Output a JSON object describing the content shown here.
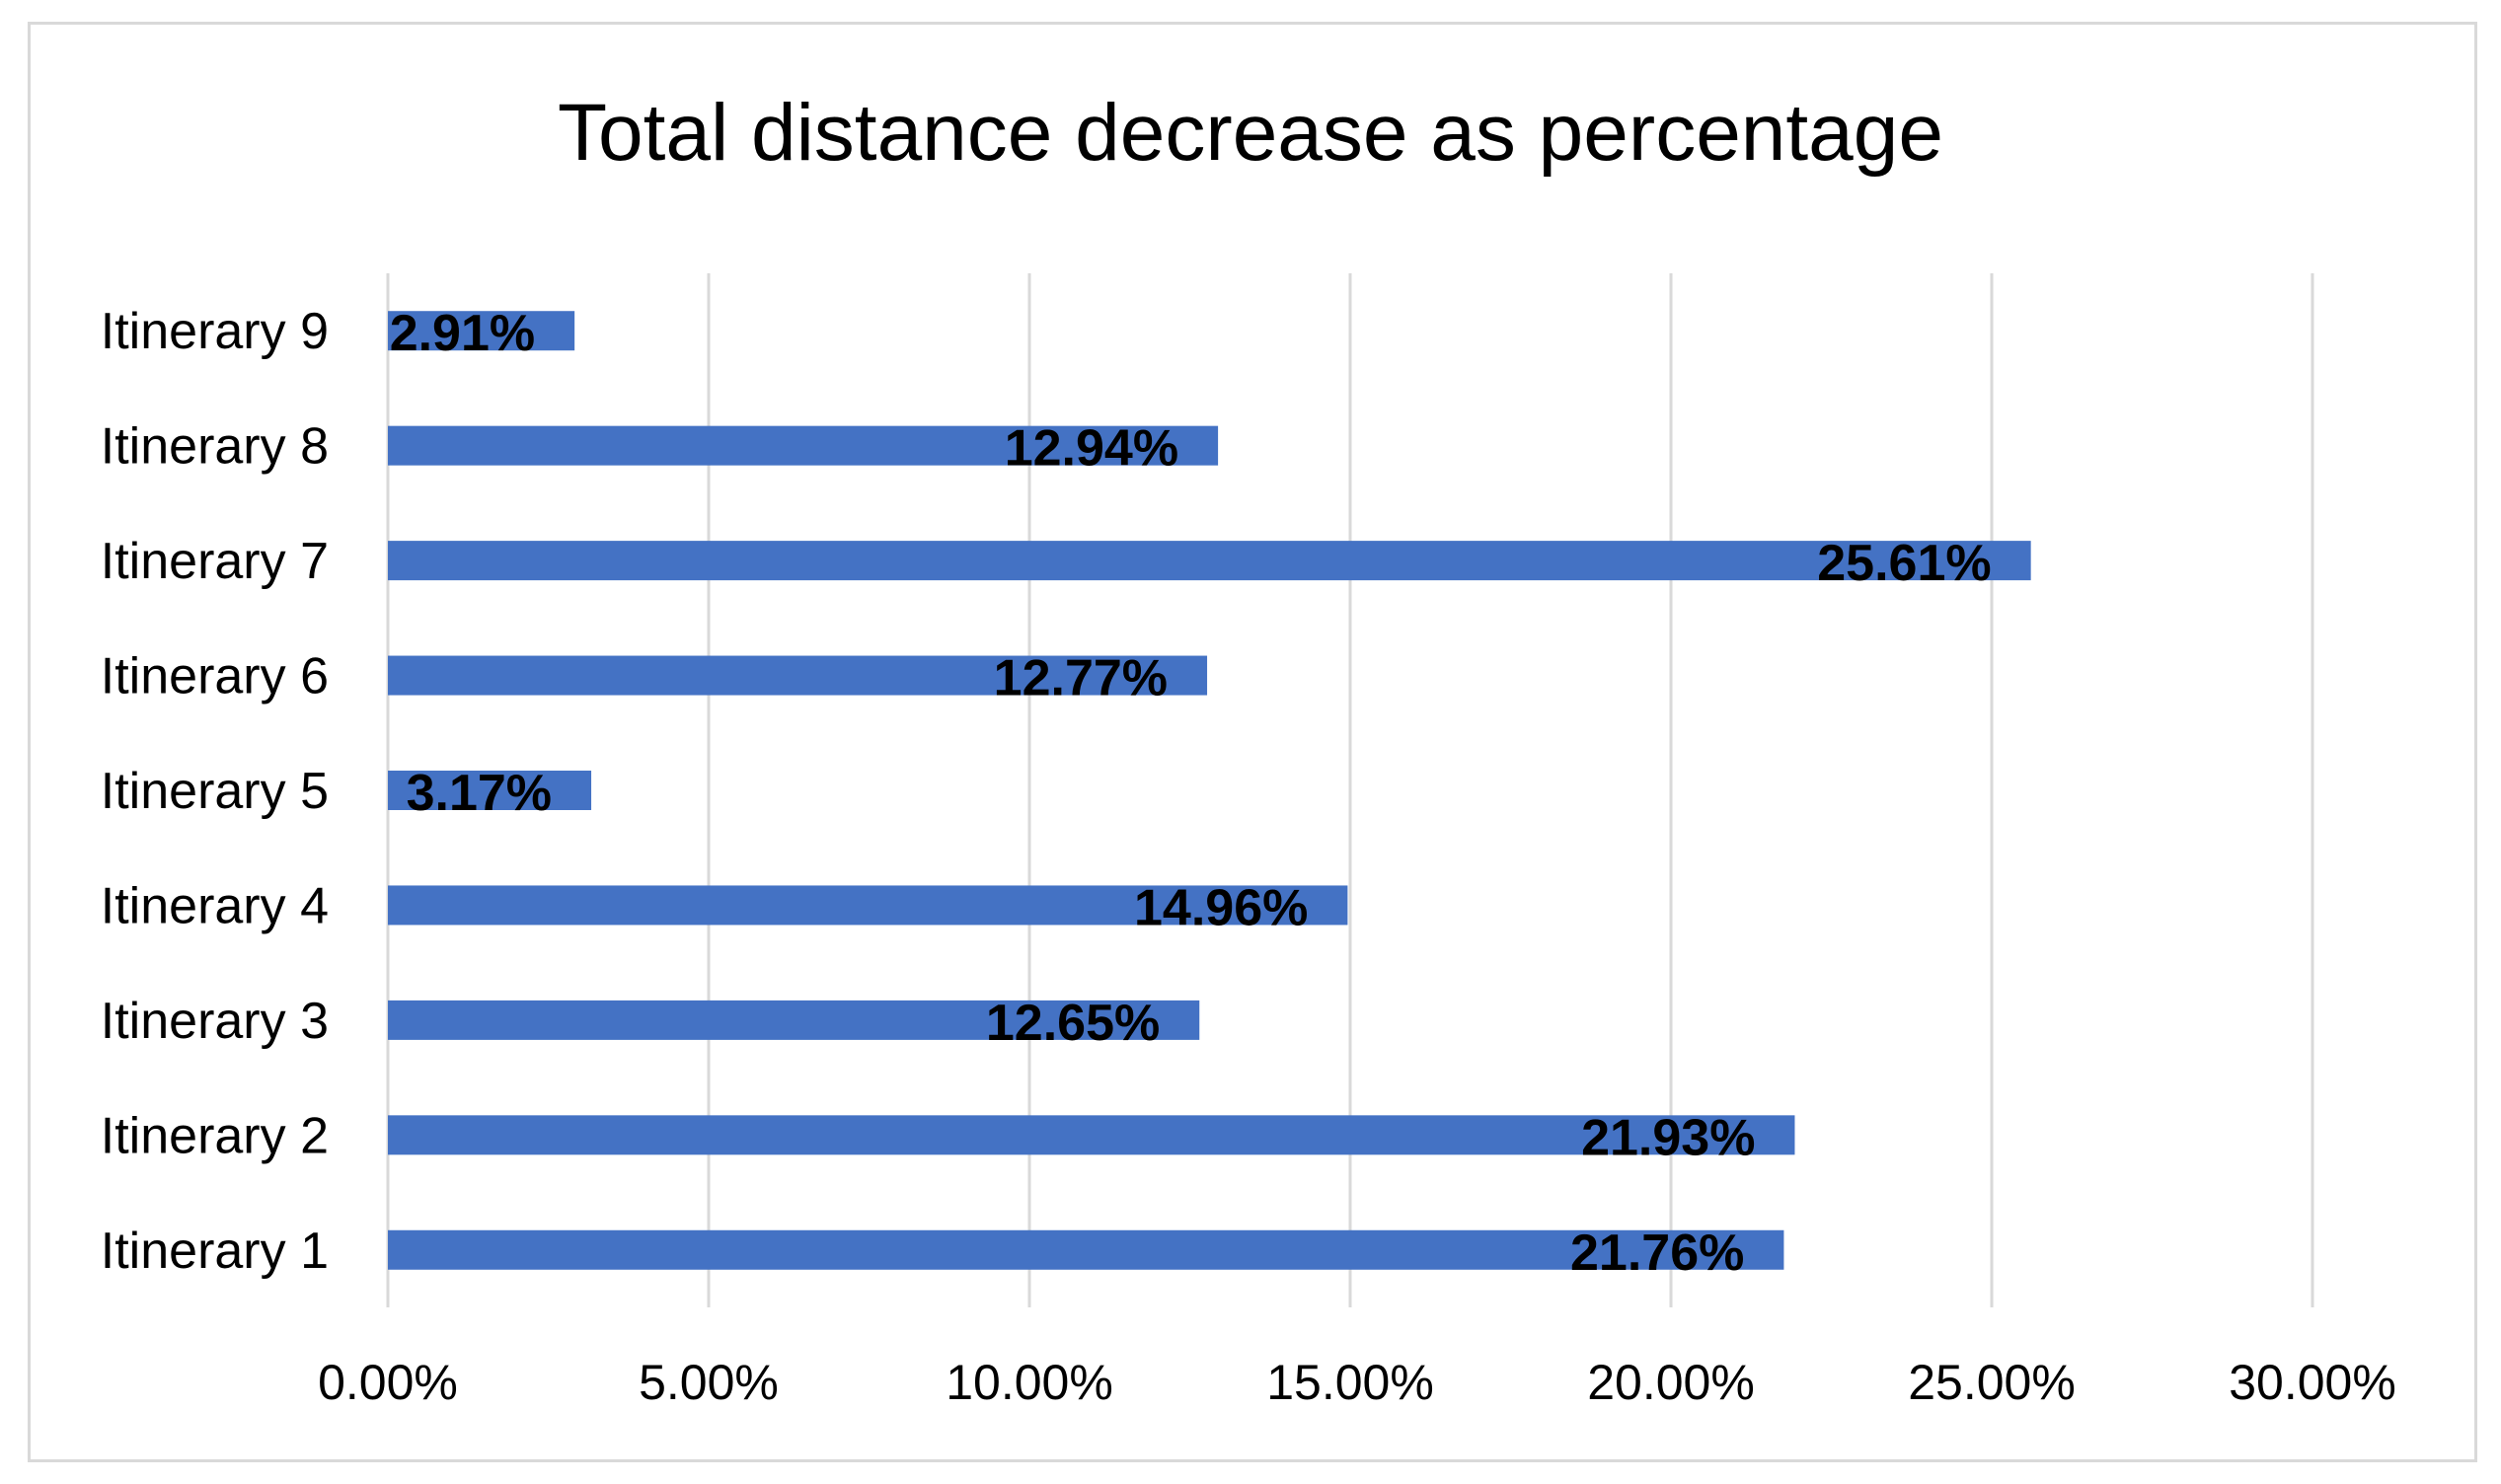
{
  "chart_data": {
    "type": "bar",
    "orientation": "horizontal",
    "title": "Total distance decrease as percentage",
    "categories": [
      "Itinerary 1",
      "Itinerary 2",
      "Itinerary 3",
      "Itinerary 4",
      "Itinerary 5",
      "Itinerary 6",
      "Itinerary 7",
      "Itinerary 8",
      "Itinerary 9"
    ],
    "values": [
      21.76,
      21.93,
      12.65,
      14.96,
      3.17,
      12.77,
      25.61,
      12.94,
      2.91
    ],
    "data_labels": [
      "21.76%",
      "21.93%",
      "12.65%",
      "14.96%",
      "3.17%",
      "12.77%",
      "25.61%",
      "12.94%",
      "2.91%"
    ],
    "xlim": [
      0,
      30
    ],
    "x_ticks": [
      0,
      5,
      10,
      15,
      20,
      25,
      30
    ],
    "x_tick_labels": [
      "0.00%",
      "5.00%",
      "10.00%",
      "15.00%",
      "20.00%",
      "25.00%",
      "30.00%"
    ],
    "xlabel": "",
    "ylabel": "",
    "grid": true,
    "legend": "none",
    "bar_color": "#4472C4"
  }
}
